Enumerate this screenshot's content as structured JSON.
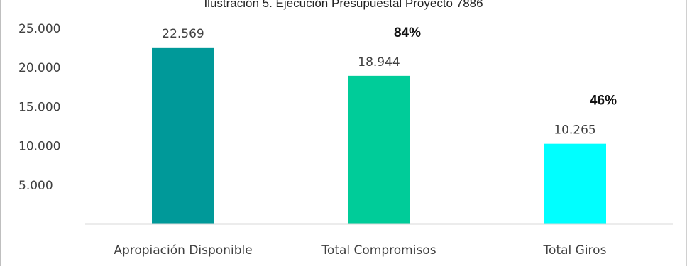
{
  "chart_data": {
    "type": "bar",
    "title": "Ilustración 5. Ejecución Presupuestal Proyecto 7886",
    "categories": [
      "Apropiación Disponible",
      "Total Compromisos",
      "Total Giros"
    ],
    "values": [
      22569,
      18944,
      10265
    ],
    "value_labels": [
      "22.569",
      "18.944",
      "10.265"
    ],
    "percent_labels": [
      "",
      "84%",
      "46%"
    ],
    "bar_colors": [
      "#009999",
      "#00cc99",
      "#00ffff"
    ],
    "yticks": [
      5000,
      10000,
      15000,
      20000,
      25000
    ],
    "ytick_labels": [
      "5.000",
      "10.000",
      "15.000",
      "20.000",
      "25.000"
    ],
    "ylim": [
      0,
      25000
    ],
    "xlabel": "",
    "ylabel": "",
    "grid": false,
    "legend": "none"
  }
}
